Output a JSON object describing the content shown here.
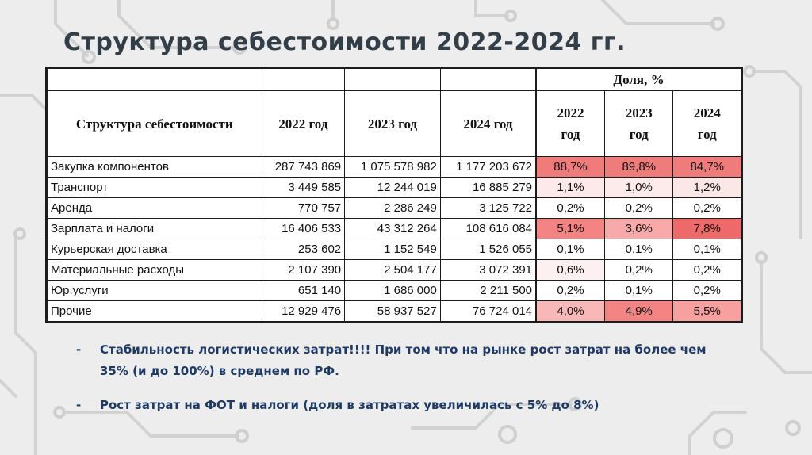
{
  "slide": {
    "title": "Структура себестоимости 2022-2024 гг."
  },
  "table": {
    "group_header": "Доля, %",
    "col_headers": [
      "Структура себестоимости",
      "2022 год",
      "2023 год",
      "2024 год",
      "2022 год",
      "2023 год",
      "2024 год"
    ],
    "rows": [
      {
        "name": "Закупка компонентов",
        "v2022": "287 743 869",
        "v2023": "1 075 578 982",
        "v2024": "1 177 203 672",
        "s2022": "88,7%",
        "s2023": "89,8%",
        "s2024": "84,7%",
        "c2022": "#f07b7b",
        "c2023": "#f07b7b",
        "c2024": "#f07b7b"
      },
      {
        "name": "Транспорт",
        "v2022": "3 449 585",
        "v2023": "12 244 019",
        "v2024": "16 885 279",
        "s2022": "1,1%",
        "s2023": "1,0%",
        "s2024": "1,2%",
        "c2022": "#fde9e9",
        "c2023": "#fdeaea",
        "c2024": "#fce7e7"
      },
      {
        "name": "Аренда",
        "v2022": "770 757",
        "v2023": "2 286 249",
        "v2024": "3 125 722",
        "s2022": "0,2%",
        "s2023": "0,2%",
        "s2024": "0,2%",
        "c2022": "#ffffff",
        "c2023": "#ffffff",
        "c2024": "#ffffff"
      },
      {
        "name": "Зарплата и налоги",
        "v2022": "16 406 533",
        "v2023": "43 312 264",
        "v2024": "108 616 084",
        "s2022": "5,1%",
        "s2023": "3,6%",
        "s2024": "7,8%",
        "c2022": "#f48383",
        "c2023": "#f8aaaa",
        "c2024": "#ee6a6a"
      },
      {
        "name": "Курьерская доставка",
        "v2022": "253 602",
        "v2023": "1 152 549",
        "v2024": "1 526 055",
        "s2022": "0,1%",
        "s2023": "0,1%",
        "s2024": "0,1%",
        "c2022": "#ffffff",
        "c2023": "#ffffff",
        "c2024": "#ffffff"
      },
      {
        "name": "Материальные расходы",
        "v2022": "2 107 390",
        "v2023": "2 504 177",
        "v2024": "3 072 391",
        "s2022": "0,6%",
        "s2023": "0,2%",
        "s2024": "0,2%",
        "c2022": "#fdf0f0",
        "c2023": "#ffffff",
        "c2024": "#ffffff"
      },
      {
        "name": "Юр.услуги",
        "v2022": "651 140",
        "v2023": "1 686 000",
        "v2024": "2 211 500",
        "s2022": "0,2%",
        "s2023": "0,1%",
        "s2024": "0,2%",
        "c2022": "#ffffff",
        "c2023": "#ffffff",
        "c2024": "#ffffff"
      },
      {
        "name": "Прочие",
        "v2022": "12 929 476",
        "v2023": "58 937 527",
        "v2024": "76 724 014",
        "s2022": "4,0%",
        "s2023": "4,9%",
        "s2024": "5,5%",
        "c2022": "#f9b8b8",
        "c2023": "#f48484",
        "c2024": "#f7a0a0"
      }
    ]
  },
  "bullets": [
    {
      "dash": "-",
      "text": "Стабильность логистических затрат!!!! При том что на рынке рост затрат на более чем 35% (и до 100%) в среднем по РФ."
    },
    {
      "dash": "-",
      "text": "Рост затрат на ФОТ и налоги (доля в затратах увеличилась с 5% до 8%)"
    }
  ]
}
